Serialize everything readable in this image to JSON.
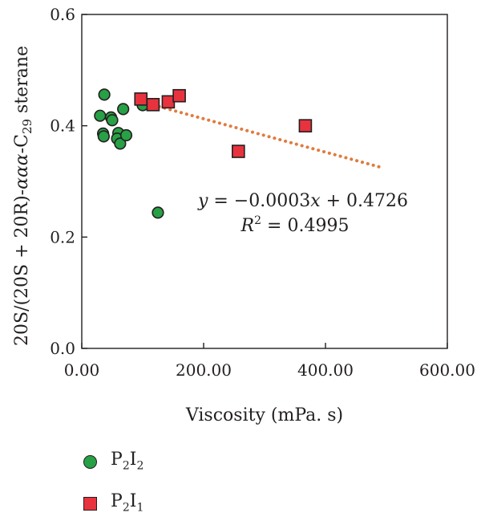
{
  "chart_data": {
    "type": "scatter",
    "xlabel": "Viscosity (mPa. s)",
    "ylabel": "20S/(20S + 20R)-ααα-C29 sterane",
    "xlim": [
      0,
      600
    ],
    "ylim": [
      0,
      0.6
    ],
    "x_ticks": [
      "0.00",
      "200.00",
      "400.00",
      "600.00"
    ],
    "y_ticks": [
      "0.0",
      "0.2",
      "0.4",
      "0.6"
    ],
    "grid": false,
    "legend_placement": "bottom-left",
    "series": [
      {
        "name": "P2I2",
        "marker": "circle",
        "color": "#27a046",
        "x": [
          37,
          30,
          48,
          50,
          35,
          36,
          60,
          58,
          63,
          68,
          73,
          100,
          125
        ],
        "y": [
          0.456,
          0.418,
          0.415,
          0.41,
          0.386,
          0.381,
          0.387,
          0.377,
          0.368,
          0.43,
          0.383,
          0.437,
          0.244
        ]
      },
      {
        "name": "P2I1",
        "marker": "square",
        "color": "#e8333f",
        "x": [
          97,
          117,
          142,
          160,
          257,
          367
        ],
        "y": [
          0.448,
          0.438,
          0.443,
          0.454,
          0.354,
          0.4
        ]
      }
    ],
    "trendline": {
      "series": "P2I1",
      "style": "dotted",
      "color": "#e07b3f",
      "x_range": [
        100,
        490
      ],
      "equation": "y = −0.0003x + 0.4726",
      "r_squared": "R2 = 0.4995"
    }
  },
  "legend": {
    "p2i2": {
      "p": "P",
      "s1": "2",
      "i": "I",
      "s2": "2"
    },
    "p2i1": {
      "p": "P",
      "s1": "2",
      "i": "I",
      "s2": "1"
    }
  }
}
